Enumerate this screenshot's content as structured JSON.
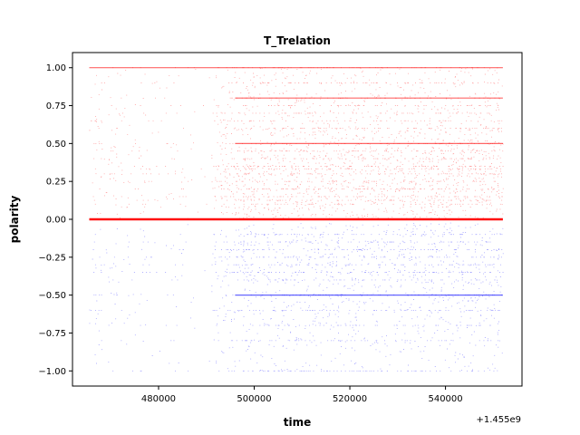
{
  "chart_data": {
    "type": "scatter",
    "title": "T_Trelation",
    "xlabel": "time",
    "ylabel": "polarity",
    "offset_label": "+1.455e9",
    "x_offset": 1455000000,
    "xlim": [
      462000,
      556000
    ],
    "ylim": [
      -1.1,
      1.1
    ],
    "x_ticks": [
      480000,
      500000,
      520000,
      540000
    ],
    "x_tick_labels": [
      "480000",
      "500000",
      "520000",
      "540000"
    ],
    "y_ticks": [
      1.0,
      0.75,
      0.5,
      0.25,
      0.0,
      -0.25,
      -0.5,
      -0.75,
      -1.0
    ],
    "y_tick_labels": [
      "1.00",
      "0.75",
      "0.50",
      "0.25",
      "0.00",
      "−0.25",
      "−0.50",
      "−0.75",
      "−1.00"
    ],
    "grid": false,
    "series": [
      {
        "color": "#ff0000",
        "x_range": [
          465500,
          552000
        ],
        "y_range": [
          0.0,
          1.0
        ],
        "dense_levels": [
          0.0,
          0.1,
          0.125,
          0.15,
          0.2,
          0.25,
          0.3,
          0.333,
          0.35,
          0.4,
          0.45,
          0.5,
          0.6,
          0.65,
          0.7,
          0.75,
          0.8,
          0.9,
          1.0
        ]
      },
      {
        "color": "#0000ff",
        "x_range": [
          465500,
          552000
        ],
        "y_range": [
          -1.0,
          -0.03
        ],
        "dense_levels": [
          -0.1,
          -0.15,
          -0.2,
          -0.25,
          -0.3,
          -0.35,
          -0.4,
          -0.5,
          -0.6,
          -0.7,
          -0.8,
          -1.0
        ]
      }
    ]
  }
}
